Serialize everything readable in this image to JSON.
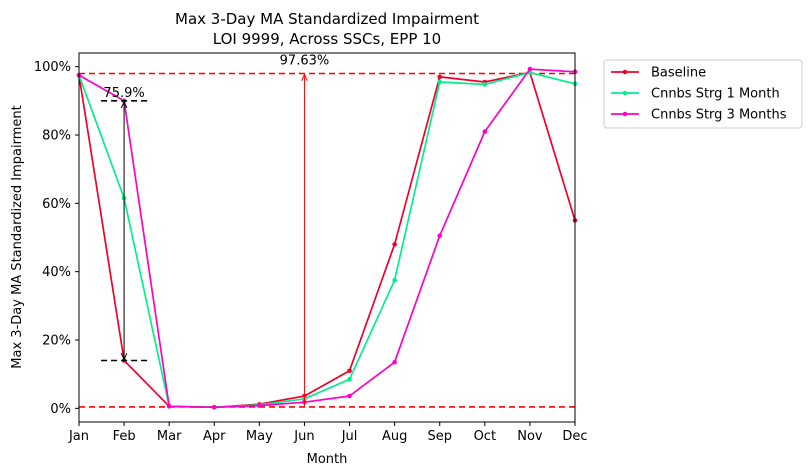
{
  "chart_data": {
    "type": "line",
    "title": "Max 3-Day MA Standardized Impairment",
    "subtitle": "LOI 9999, Across SSCs, EPP 10",
    "xlabel": "Month",
    "ylabel": "Max 3-Day MA Standardized Impairment",
    "categories": [
      "Jan",
      "Feb",
      "Mar",
      "Apr",
      "May",
      "Jun",
      "Jul",
      "Aug",
      "Sep",
      "Oct",
      "Nov",
      "Dec"
    ],
    "ylim": [
      -4,
      104
    ],
    "yticks": [
      0,
      20,
      40,
      60,
      80,
      100
    ],
    "ytick_labels": [
      "0%",
      "20%",
      "40%",
      "60%",
      "80%",
      "100%"
    ],
    "grid": false,
    "legend_position": "outside-right",
    "series": [
      {
        "name": "Baseline",
        "color": "#f0002a",
        "values": [
          97.5,
          14.0,
          0.6,
          0.3,
          1.2,
          3.6,
          11.0,
          48.0,
          97.0,
          95.5,
          98.3,
          55.0
        ]
      },
      {
        "name": "Cnnbs Strg 1 Month",
        "color": "#00f08a",
        "values": [
          97.5,
          61.5,
          0.6,
          0.3,
          1.0,
          2.8,
          8.5,
          37.5,
          95.5,
          94.8,
          98.3,
          95.0
        ]
      },
      {
        "name": "Cnnbs Strg 3 Months",
        "color": "#ff00c8",
        "values": [
          97.5,
          90.0,
          0.6,
          0.3,
          0.8,
          1.8,
          3.6,
          13.5,
          50.5,
          81.0,
          99.3,
          98.5
        ]
      }
    ],
    "reference_lines": [
      {
        "y": 98.0,
        "color": "#ff0000",
        "style": "dashed"
      },
      {
        "y": 0.4,
        "color": "#ff0000",
        "style": "dashed"
      }
    ],
    "annotations": [
      {
        "type": "range_arrow",
        "x": "Feb",
        "y_top": 90.0,
        "y_bottom": 14.0,
        "label": "75.9%",
        "color": "#000000"
      },
      {
        "type": "arrow",
        "x": "Jun",
        "y_from": 0.4,
        "y_to": 98.0,
        "label": "97.63%",
        "color": "#ff0000"
      }
    ]
  }
}
